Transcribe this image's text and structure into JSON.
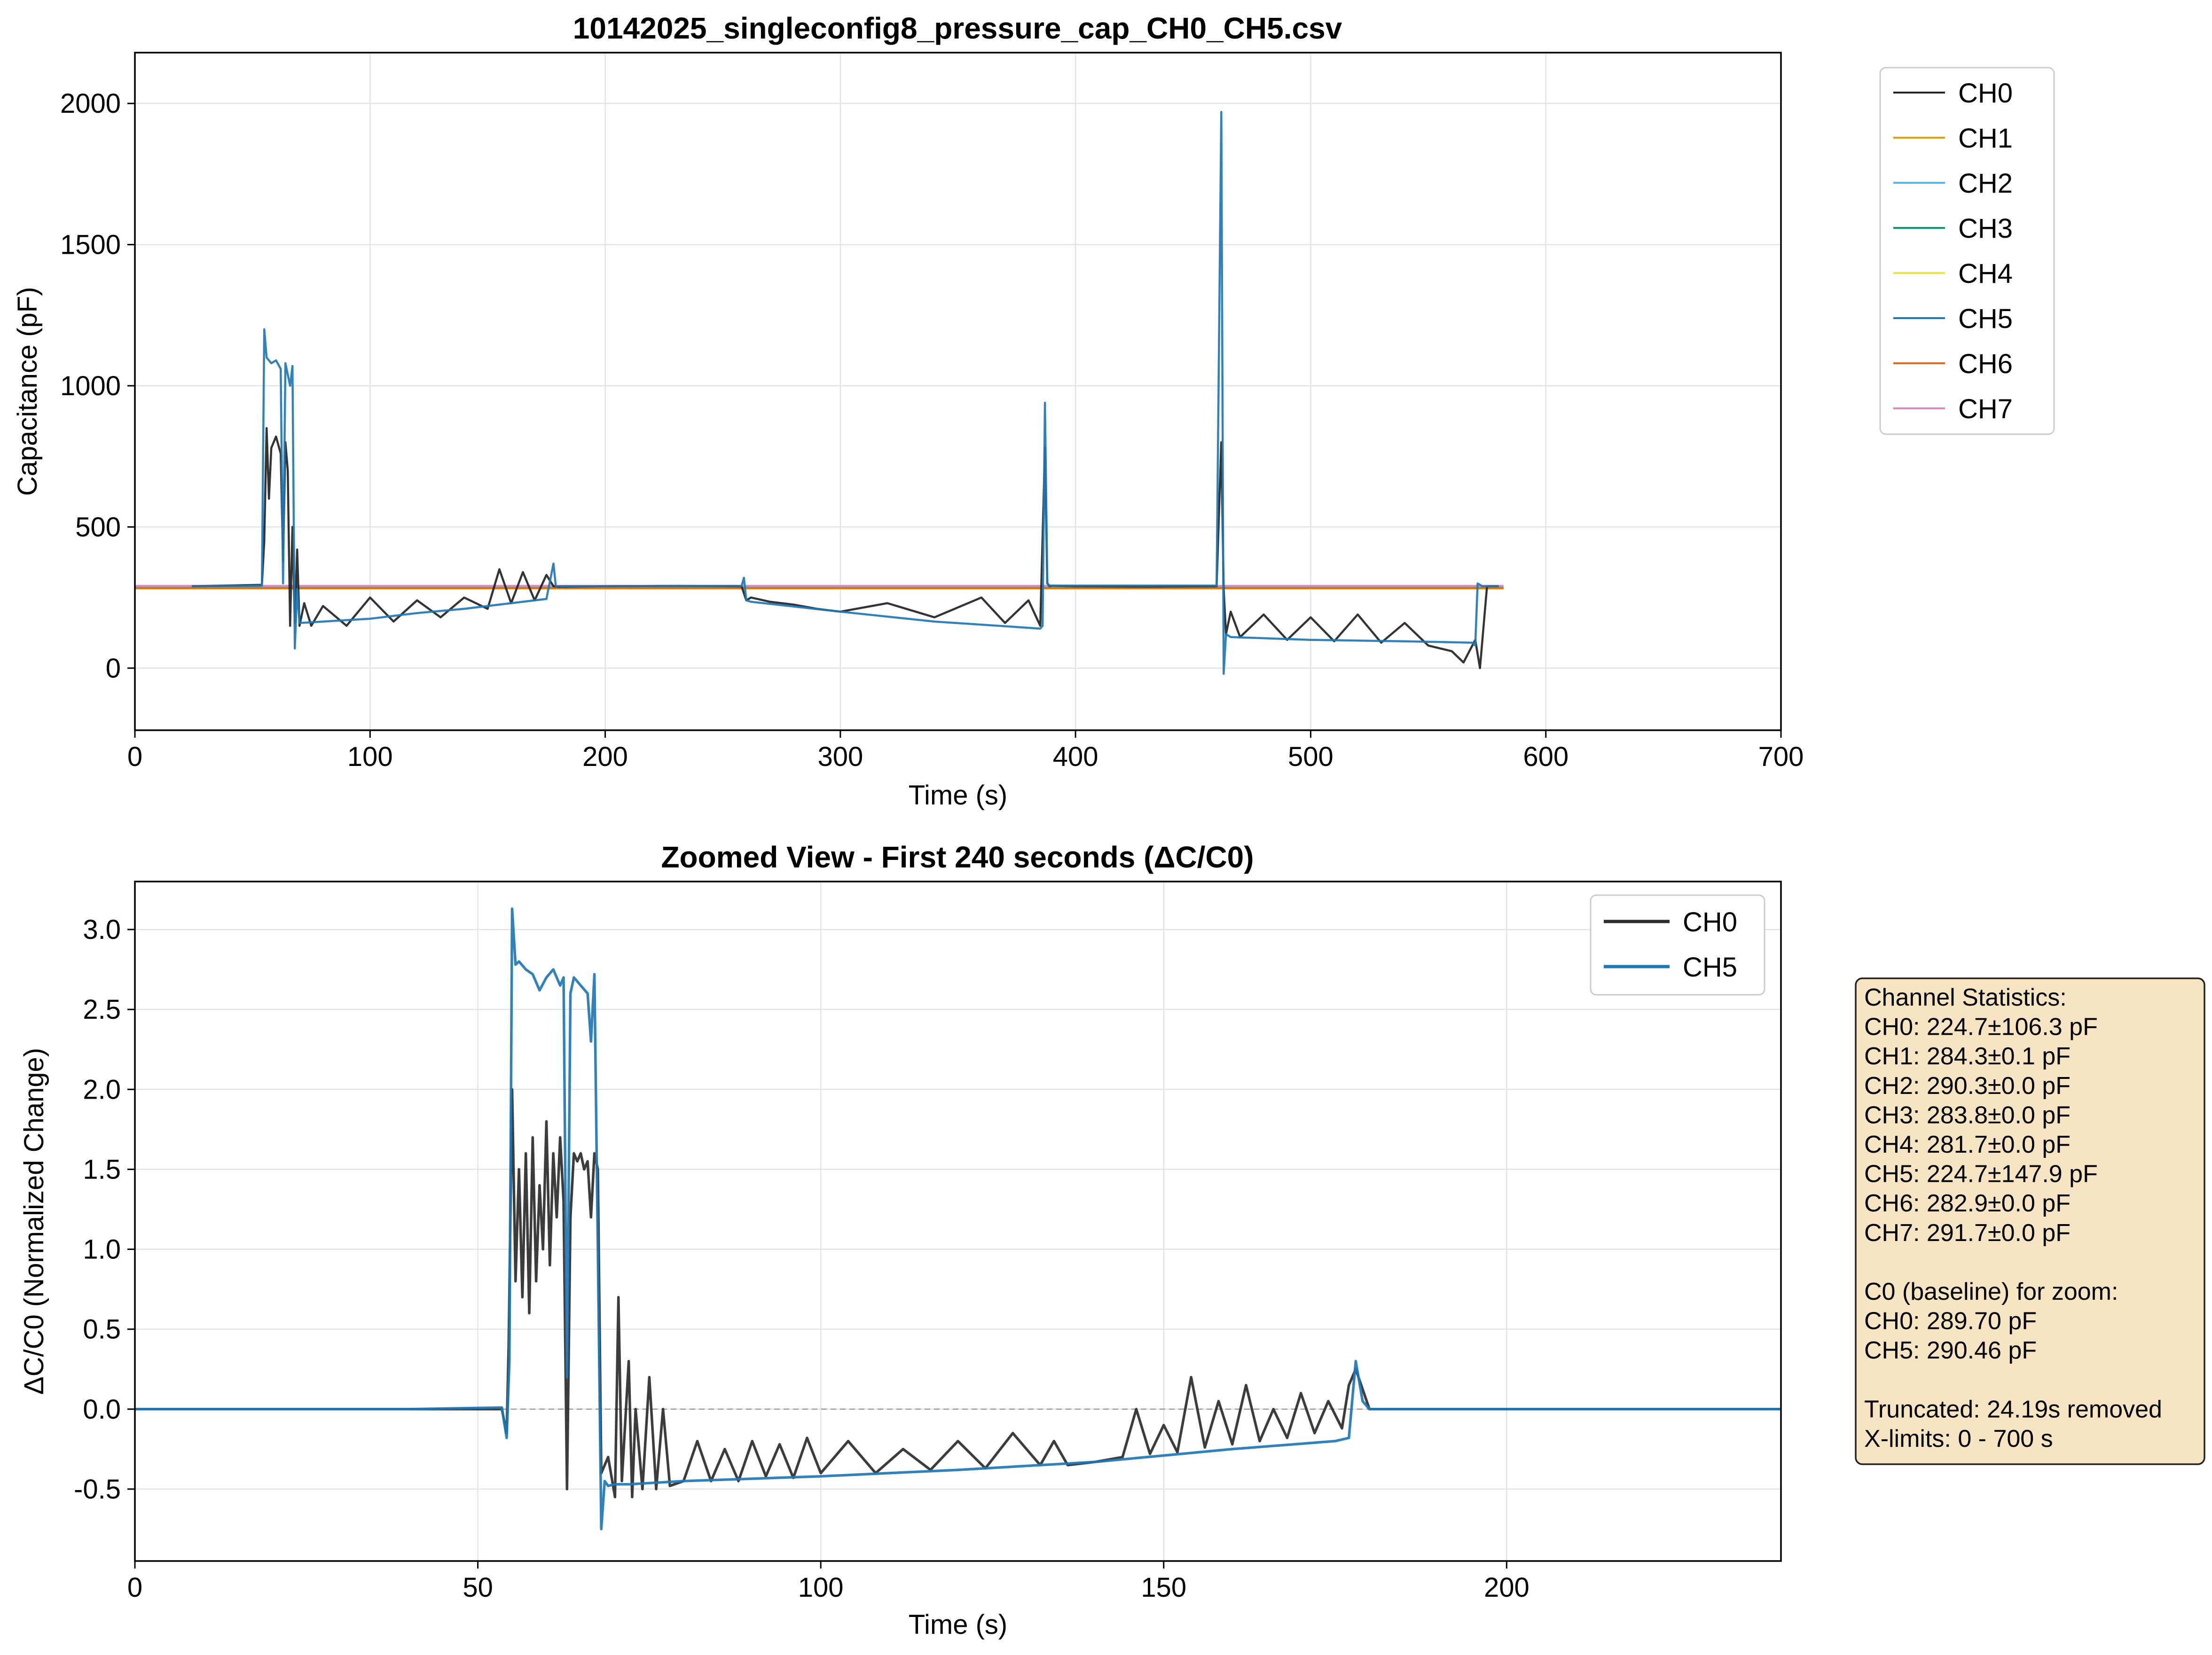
{
  "chart_data": [
    {
      "type": "line",
      "title": "10142025_singleconfig8_pressure_cap_CH0_CH5.csv",
      "xlabel": "Time (s)",
      "ylabel": "Capacitance (pF)",
      "xlim": [
        0,
        700
      ],
      "ylim": [
        -220,
        2180
      ],
      "xticks": [
        0,
        100,
        200,
        300,
        400,
        500,
        600,
        700
      ],
      "yticks": [
        0,
        500,
        1000,
        1500,
        2000
      ],
      "grid": true,
      "legend_position": "outside-right",
      "series": [
        {
          "name": "CH0",
          "color": "#222222",
          "width": 4.5,
          "x": [
            24.2,
            54,
            55,
            56,
            57,
            58,
            60,
            62,
            63,
            64,
            65,
            66,
            67,
            68,
            69,
            70,
            72,
            75,
            80,
            90,
            100,
            110,
            120,
            130,
            140,
            150,
            155,
            160,
            165,
            170,
            175,
            178,
            180,
            200,
            230,
            258,
            260,
            262,
            270,
            280,
            290,
            300,
            320,
            340,
            360,
            370,
            380,
            385,
            387,
            388,
            389,
            390,
            400,
            430,
            460,
            462,
            463,
            464,
            466,
            470,
            480,
            490,
            500,
            510,
            520,
            530,
            540,
            550,
            560,
            565,
            570,
            572,
            575,
            580
          ],
          "y": [
            290,
            295,
            450,
            850,
            600,
            780,
            820,
            760,
            380,
            800,
            700,
            150,
            500,
            160,
            420,
            150,
            230,
            150,
            220,
            150,
            250,
            165,
            240,
            180,
            250,
            210,
            350,
            230,
            340,
            240,
            330,
            290,
            288,
            290,
            291,
            290,
            240,
            250,
            235,
            225,
            210,
            200,
            230,
            180,
            250,
            160,
            240,
            150,
            780,
            300,
            290,
            292,
            290,
            289,
            290,
            800,
            280,
            120,
            200,
            110,
            190,
            100,
            180,
            95,
            190,
            90,
            160,
            80,
            60,
            20,
            100,
            0,
            290,
            290
          ]
        },
        {
          "name": "CH1",
          "color": "#e69f00",
          "width": 4,
          "x": [
            0,
            582
          ],
          "y": [
            284.3,
            284.3
          ]
        },
        {
          "name": "CH2",
          "color": "#56b4e9",
          "width": 4,
          "x": [
            0,
            582
          ],
          "y": [
            290.3,
            290.3
          ]
        },
        {
          "name": "CH3",
          "color": "#009e73",
          "width": 4,
          "x": [
            0,
            582
          ],
          "y": [
            283.8,
            283.8
          ]
        },
        {
          "name": "CH4",
          "color": "#f0e442",
          "width": 4,
          "x": [
            0,
            582
          ],
          "y": [
            281.7,
            281.7
          ]
        },
        {
          "name": "CH5",
          "color": "#1f77b4",
          "width": 4.5,
          "x": [
            24.2,
            54,
            55,
            56,
            58,
            60,
            62,
            63,
            64,
            66,
            67,
            68,
            69,
            70,
            80,
            100,
            120,
            140,
            160,
            175,
            178,
            179,
            180,
            200,
            230,
            258,
            259,
            260,
            262,
            300,
            340,
            385,
            386,
            387,
            388,
            389,
            390,
            420,
            460,
            462,
            463,
            464,
            466,
            500,
            540,
            569,
            570,
            571,
            573,
            580
          ],
          "y": [
            290,
            292,
            1200,
            1100,
            1080,
            1090,
            1060,
            300,
            1080,
            1000,
            1070,
            70,
            280,
            160,
            165,
            175,
            195,
            210,
            230,
            245,
            370,
            290,
            290,
            290,
            291,
            291,
            320,
            240,
            235,
            200,
            165,
            140,
            150,
            940,
            300,
            292,
            292,
            292,
            292,
            1970,
            -20,
            120,
            110,
            100,
            95,
            90,
            80,
            300,
            290,
            290
          ]
        },
        {
          "name": "CH6",
          "color": "#e46b17",
          "width": 4.5,
          "x": [
            0,
            582
          ],
          "y": [
            282.9,
            282.9
          ]
        },
        {
          "name": "CH7",
          "color": "#dd88c0",
          "width": 4,
          "x": [
            0,
            582
          ],
          "y": [
            291.7,
            291.7
          ]
        }
      ]
    },
    {
      "type": "line",
      "title": "Zoomed View - First 240 seconds (ΔC/C0)",
      "xlabel": "Time (s)",
      "ylabel": "ΔC/C0 (Normalized Change)",
      "xlim": [
        0,
        240
      ],
      "ylim": [
        -0.95,
        3.3
      ],
      "xticks": [
        0,
        50,
        100,
        150,
        200
      ],
      "yticks": [
        -0.5,
        0.0,
        0.5,
        1.0,
        1.5,
        2.0,
        2.5,
        3.0
      ],
      "grid": true,
      "reference_line_y": 0,
      "legend_position": "top-right",
      "series": [
        {
          "name": "CH0",
          "color": "#2b2b2b",
          "width": 5.5,
          "x": [
            0,
            20,
            40,
            53.5,
            54.2,
            54.5,
            55,
            55.5,
            56,
            56.5,
            57,
            57.5,
            58,
            58.5,
            59,
            59.5,
            60,
            60.5,
            61,
            61.5,
            62,
            62.5,
            63,
            63.5,
            64,
            64.5,
            65,
            65.5,
            66,
            66.5,
            67,
            67.5,
            68,
            69,
            70,
            70.5,
            71,
            72,
            72.5,
            73,
            74,
            75,
            76,
            77,
            78,
            80,
            82,
            84,
            86,
            88,
            90,
            92,
            94,
            96,
            98,
            100,
            104,
            108,
            112,
            116,
            120,
            124,
            128,
            132,
            134,
            136,
            140,
            144,
            146,
            148,
            150,
            152,
            154,
            156,
            158,
            160,
            162,
            164,
            166,
            168,
            170,
            172,
            174,
            176,
            177,
            178,
            180,
            200,
            220,
            240
          ],
          "y": [
            0,
            0,
            0,
            0,
            -0.15,
            0.4,
            2.0,
            0.8,
            1.5,
            0.7,
            1.6,
            0.6,
            1.7,
            0.8,
            1.4,
            1.0,
            1.8,
            0.9,
            1.6,
            1.2,
            1.7,
            1.3,
            -0.5,
            1.2,
            1.6,
            1.55,
            1.6,
            1.5,
            1.55,
            1.2,
            1.6,
            1.5,
            -0.4,
            -0.3,
            -0.55,
            0.7,
            -0.45,
            0.3,
            -0.55,
            0.0,
            -0.5,
            0.2,
            -0.5,
            0.0,
            -0.48,
            -0.45,
            -0.2,
            -0.45,
            -0.25,
            -0.45,
            -0.2,
            -0.42,
            -0.22,
            -0.43,
            -0.18,
            -0.4,
            -0.2,
            -0.4,
            -0.25,
            -0.38,
            -0.2,
            -0.37,
            -0.15,
            -0.35,
            -0.2,
            -0.35,
            -0.33,
            -0.3,
            0.0,
            -0.28,
            -0.1,
            -0.27,
            0.2,
            -0.24,
            0.05,
            -0.22,
            0.15,
            -0.2,
            0.0,
            -0.18,
            0.1,
            -0.15,
            0.05,
            -0.12,
            0.15,
            0.25,
            0.0,
            0.0,
            0.0,
            0.0
          ]
        },
        {
          "name": "CH5",
          "color": "#1f77b4",
          "width": 5.5,
          "x": [
            0,
            20,
            40,
            53.5,
            54.2,
            54.6,
            55,
            55.5,
            56,
            57,
            58,
            59,
            60,
            61,
            62,
            62.5,
            63,
            63.5,
            64,
            65,
            66,
            66.5,
            67,
            67.5,
            68,
            68.5,
            69,
            70,
            72,
            80,
            100,
            120,
            140,
            160,
            175,
            177,
            178,
            179,
            180,
            200,
            220,
            240
          ],
          "y": [
            0,
            0,
            0,
            0.01,
            -0.18,
            0.3,
            3.13,
            2.78,
            2.8,
            2.75,
            2.72,
            2.62,
            2.7,
            2.75,
            2.65,
            2.7,
            0.2,
            2.6,
            2.7,
            2.65,
            2.6,
            2.3,
            2.72,
            1.0,
            -0.75,
            -0.45,
            -0.48,
            -0.47,
            -0.47,
            -0.45,
            -0.42,
            -0.38,
            -0.33,
            -0.25,
            -0.2,
            -0.18,
            0.3,
            0.05,
            0.0,
            0.0,
            0.0,
            0.0
          ]
        }
      ]
    }
  ],
  "stats_box": {
    "lines": [
      "Channel Statistics:",
      "CH0: 224.7±106.3 pF",
      "CH1: 284.3±0.1 pF",
      "CH2: 290.3±0.0 pF",
      "CH3: 283.8±0.0 pF",
      "CH4: 281.7±0.0 pF",
      "CH5: 224.7±147.9 pF",
      "CH6: 282.9±0.0 pF",
      "CH7: 291.7±0.0 pF",
      "",
      "C0 (baseline) for zoom:",
      "CH0: 289.70 pF",
      "CH5: 290.46 pF",
      "",
      "Truncated: 24.19s removed",
      "X-limits: 0 - 700 s"
    ],
    "background": "#f7e4c3",
    "border": "#222222"
  }
}
